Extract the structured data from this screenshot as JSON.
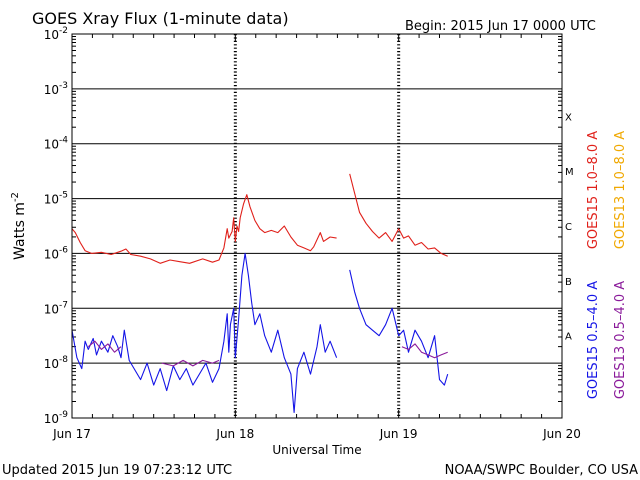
{
  "header": {
    "title": "GOES Xray Flux (1-minute data)",
    "begin_label": "Begin:  2015 Jun 17 0000 UTC"
  },
  "footer": {
    "updated": "Updated 2015 Jun 19 07:23:12 UTC",
    "credit": "NOAA/SWPC Boulder, CO USA"
  },
  "colors": {
    "goes15_long": "#e0201a",
    "goes13_long": "#f0a800",
    "goes15_short": "#1414e6",
    "goes13_short": "#8a1a9a"
  },
  "chart_data": {
    "type": "line",
    "title": "GOES Xray Flux (1-minute data)",
    "xlabel": "Universal Time",
    "ylabel": "Watts m",
    "ylabel_superscript": "-2",
    "yscale": "log",
    "ylim": [
      1e-09,
      0.01
    ],
    "xlim_days": [
      0,
      3
    ],
    "x_ticks": [
      {
        "day": 0,
        "label": "Jun 17"
      },
      {
        "day": 1,
        "label": "Jun 18"
      },
      {
        "day": 2,
        "label": "Jun 19"
      },
      {
        "day": 3,
        "label": "Jun 20"
      }
    ],
    "y_ticks": [
      {
        "exp": -9,
        "label": "10",
        "sup": "-9"
      },
      {
        "exp": -8,
        "label": "10",
        "sup": "-8"
      },
      {
        "exp": -7,
        "label": "10",
        "sup": "-7"
      },
      {
        "exp": -6,
        "label": "10",
        "sup": "-6"
      },
      {
        "exp": -5,
        "label": "10",
        "sup": "-5"
      },
      {
        "exp": -4,
        "label": "10",
        "sup": "-4"
      },
      {
        "exp": -3,
        "label": "10",
        "sup": "-3"
      },
      {
        "exp": -2,
        "label": "10",
        "sup": "-2"
      }
    ],
    "flare_classes": [
      {
        "label": "A",
        "exp": -7.5
      },
      {
        "label": "B",
        "exp": -6.5
      },
      {
        "label": "C",
        "exp": -5.5
      },
      {
        "label": "M",
        "exp": -4.5
      },
      {
        "label": "X",
        "exp": -3.5
      }
    ],
    "legend": [
      {
        "label": "GOES15 1.0–8.0 A",
        "color": "#e0201a"
      },
      {
        "label": "GOES13 1.0–8.0 A",
        "color": "#f0a800"
      },
      {
        "label": "GOES15 0.5–4.0 A",
        "color": "#1414e6"
      },
      {
        "label": "GOES13 0.5–4.0 A",
        "color": "#8a1a9a"
      }
    ],
    "series": [
      {
        "name": "GOES15 1.0–8.0 A",
        "color": "#e0201a",
        "segments": [
          [
            [
              0.0,
              -5.55
            ],
            [
              0.02,
              -5.62
            ],
            [
              0.05,
              -5.8
            ],
            [
              0.08,
              -5.95
            ],
            [
              0.12,
              -6.0
            ],
            [
              0.18,
              -5.98
            ],
            [
              0.24,
              -6.02
            ],
            [
              0.3,
              -5.96
            ],
            [
              0.33,
              -5.92
            ],
            [
              0.36,
              -6.02
            ],
            [
              0.42,
              -6.05
            ],
            [
              0.48,
              -6.1
            ],
            [
              0.54,
              -6.18
            ],
            [
              0.6,
              -6.12
            ],
            [
              0.66,
              -6.15
            ],
            [
              0.72,
              -6.18
            ],
            [
              0.8,
              -6.1
            ],
            [
              0.86,
              -6.16
            ],
            [
              0.9,
              -6.12
            ],
            [
              0.93,
              -5.9
            ],
            [
              0.95,
              -5.55
            ],
            [
              0.96,
              -5.72
            ],
            [
              0.98,
              -5.6
            ],
            [
              0.99,
              -5.35
            ],
            [
              1.0,
              -5.78
            ],
            [
              1.01,
              -5.5
            ],
            [
              1.02,
              -5.6
            ],
            [
              1.03,
              -5.35
            ],
            [
              1.05,
              -5.1
            ],
            [
              1.07,
              -4.93
            ],
            [
              1.09,
              -5.15
            ],
            [
              1.12,
              -5.4
            ],
            [
              1.15,
              -5.55
            ],
            [
              1.18,
              -5.62
            ],
            [
              1.22,
              -5.58
            ],
            [
              1.26,
              -5.62
            ],
            [
              1.3,
              -5.5
            ],
            [
              1.34,
              -5.7
            ],
            [
              1.38,
              -5.85
            ],
            [
              1.42,
              -5.9
            ],
            [
              1.46,
              -5.95
            ],
            [
              1.48,
              -5.88
            ],
            [
              1.52,
              -5.62
            ],
            [
              1.54,
              -5.78
            ],
            [
              1.58,
              -5.7
            ],
            [
              1.62,
              -5.72
            ]
          ],
          [
            [
              1.7,
              -4.55
            ],
            [
              1.73,
              -4.9
            ],
            [
              1.76,
              -5.25
            ],
            [
              1.8,
              -5.45
            ],
            [
              1.84,
              -5.6
            ],
            [
              1.88,
              -5.72
            ],
            [
              1.92,
              -5.62
            ],
            [
              1.96,
              -5.78
            ],
            [
              2.0,
              -5.55
            ],
            [
              2.03,
              -5.72
            ],
            [
              2.06,
              -5.68
            ],
            [
              2.1,
              -5.85
            ],
            [
              2.14,
              -5.8
            ],
            [
              2.18,
              -5.92
            ],
            [
              2.22,
              -5.9
            ],
            [
              2.26,
              -6.0
            ],
            [
              2.3,
              -6.05
            ]
          ]
        ]
      },
      {
        "name": "GOES15 0.5–4.0 A",
        "color": "#1414e6",
        "segments": [
          [
            [
              0.0,
              -7.4
            ],
            [
              0.03,
              -7.9
            ],
            [
              0.06,
              -8.1
            ],
            [
              0.08,
              -7.6
            ],
            [
              0.1,
              -7.75
            ],
            [
              0.13,
              -7.55
            ],
            [
              0.15,
              -7.85
            ],
            [
              0.18,
              -7.6
            ],
            [
              0.22,
              -7.8
            ],
            [
              0.25,
              -7.5
            ],
            [
              0.28,
              -7.7
            ],
            [
              0.3,
              -7.9
            ],
            [
              0.32,
              -7.4
            ],
            [
              0.35,
              -7.95
            ],
            [
              0.38,
              -8.1
            ],
            [
              0.42,
              -8.3
            ],
            [
              0.46,
              -8.0
            ],
            [
              0.5,
              -8.4
            ],
            [
              0.54,
              -8.1
            ],
            [
              0.58,
              -8.5
            ],
            [
              0.62,
              -8.05
            ],
            [
              0.66,
              -8.3
            ],
            [
              0.7,
              -8.1
            ],
            [
              0.74,
              -8.4
            ],
            [
              0.78,
              -8.2
            ],
            [
              0.82,
              -8.0
            ],
            [
              0.86,
              -8.35
            ],
            [
              0.9,
              -8.1
            ],
            [
              0.93,
              -7.6
            ],
            [
              0.95,
              -7.1
            ],
            [
              0.96,
              -7.8
            ],
            [
              0.97,
              -7.3
            ],
            [
              0.99,
              -7.0
            ],
            [
              1.0,
              -7.9
            ],
            [
              1.02,
              -7.2
            ],
            [
              1.04,
              -6.4
            ],
            [
              1.06,
              -6.0
            ],
            [
              1.08,
              -6.4
            ],
            [
              1.1,
              -6.9
            ],
            [
              1.12,
              -7.3
            ],
            [
              1.15,
              -7.1
            ],
            [
              1.18,
              -7.5
            ],
            [
              1.22,
              -7.8
            ],
            [
              1.26,
              -7.4
            ],
            [
              1.3,
              -7.9
            ],
            [
              1.34,
              -8.2
            ],
            [
              1.36,
              -8.9
            ],
            [
              1.38,
              -8.1
            ],
            [
              1.42,
              -7.8
            ],
            [
              1.46,
              -8.2
            ],
            [
              1.5,
              -7.7
            ],
            [
              1.52,
              -7.3
            ],
            [
              1.55,
              -7.8
            ],
            [
              1.58,
              -7.6
            ],
            [
              1.62,
              -7.9
            ]
          ],
          [
            [
              1.7,
              -6.3
            ],
            [
              1.73,
              -6.7
            ],
            [
              1.76,
              -7.0
            ],
            [
              1.8,
              -7.3
            ],
            [
              1.84,
              -7.4
            ],
            [
              1.88,
              -7.5
            ],
            [
              1.92,
              -7.3
            ],
            [
              1.96,
              -7.0
            ],
            [
              2.0,
              -7.5
            ],
            [
              2.03,
              -7.4
            ],
            [
              2.06,
              -7.8
            ],
            [
              2.1,
              -7.4
            ],
            [
              2.14,
              -7.6
            ],
            [
              2.18,
              -7.9
            ],
            [
              2.22,
              -7.5
            ],
            [
              2.25,
              -8.3
            ],
            [
              2.28,
              -8.4
            ],
            [
              2.3,
              -8.2
            ]
          ]
        ]
      },
      {
        "name": "GOES13 0.5–4.0 A",
        "color": "#8a1a9a",
        "segments": [
          [
            [
              0.1,
              -7.7
            ],
            [
              0.14,
              -7.6
            ],
            [
              0.18,
              -7.75
            ],
            [
              0.22,
              -7.65
            ],
            [
              0.26,
              -7.8
            ],
            [
              0.3,
              -7.7
            ]
          ],
          [
            [
              0.55,
              -8.0
            ],
            [
              0.62,
              -8.05
            ],
            [
              0.68,
              -7.95
            ],
            [
              0.74,
              -8.05
            ],
            [
              0.8,
              -7.95
            ],
            [
              0.86,
              -8.0
            ],
            [
              0.9,
              -7.95
            ]
          ],
          [
            [
              2.02,
              -7.7
            ],
            [
              2.06,
              -7.75
            ],
            [
              2.1,
              -7.65
            ],
            [
              2.14,
              -7.8
            ],
            [
              2.18,
              -7.85
            ],
            [
              2.22,
              -7.9
            ],
            [
              2.26,
              -7.85
            ],
            [
              2.3,
              -7.8
            ]
          ]
        ]
      }
    ]
  }
}
